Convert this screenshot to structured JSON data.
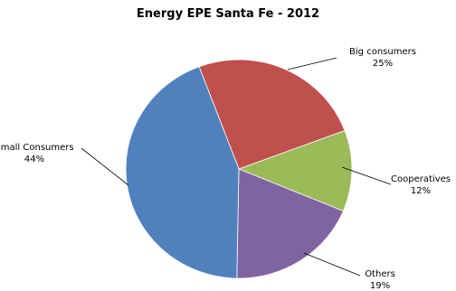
{
  "chart_data": {
    "type": "pie",
    "title": "Energy  EPE Santa Fe - 2012",
    "slices": [
      {
        "name": "Big consumers",
        "value": 25,
        "value_label": "25%",
        "color": "#c0504d"
      },
      {
        "name": "Cooperatives",
        "value": 12,
        "value_label": "12%",
        "color": "#9bbb59"
      },
      {
        "name": "Others",
        "value": 19,
        "value_label": "19%",
        "color": "#8064a2"
      },
      {
        "name": "Small Consumers",
        "value": 44,
        "value_label": "44%",
        "color": "#4f81bd"
      }
    ],
    "legend": false,
    "data_labels": "outside with leader lines"
  }
}
